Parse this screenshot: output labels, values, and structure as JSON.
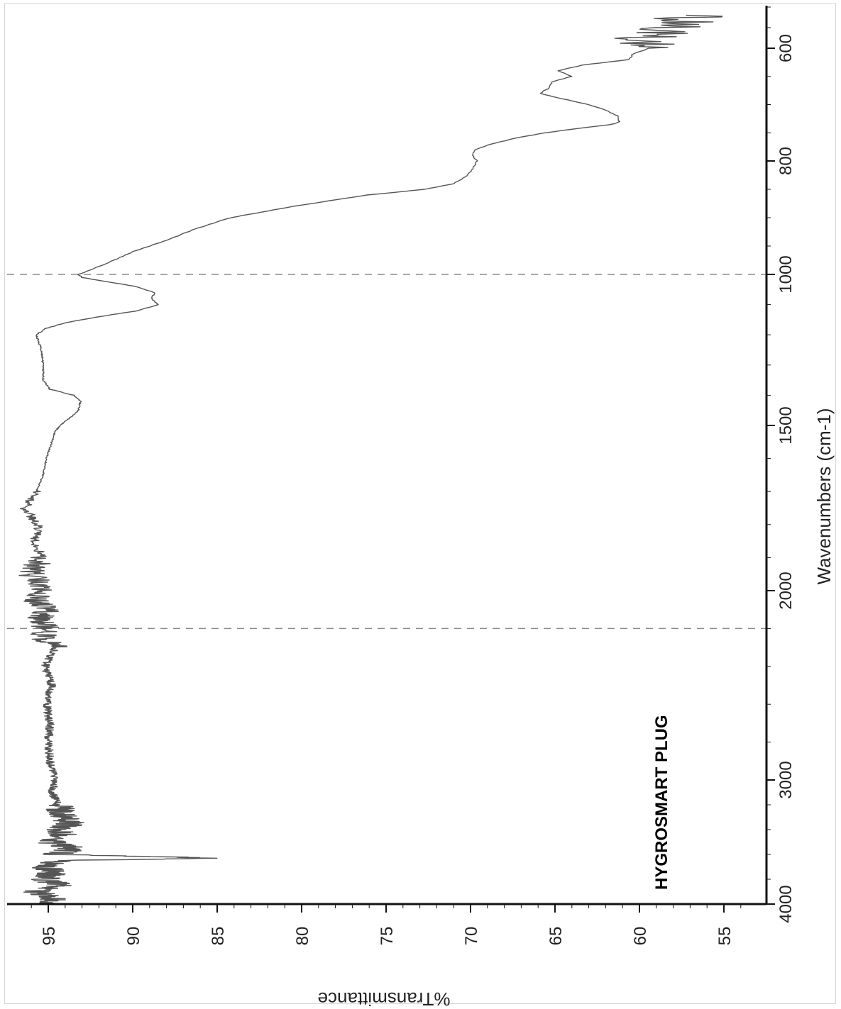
{
  "chart_data": {
    "type": "line",
    "orientation": "rotated-90-clockwise",
    "xlabel": "Wavenumbers (cm-1)",
    "ylabel": "%Transmittance",
    "annotation": "HYGROSMART PLUG",
    "x_ticks": [
      4000,
      3000,
      2000,
      1500,
      1000,
      800,
      600
    ],
    "y_ticks": [
      95,
      90,
      85,
      80,
      75,
      70,
      65,
      60,
      55
    ],
    "xlim": [
      4000,
      500
    ],
    "ylim": [
      53,
      97
    ],
    "x_axis_scale": "piecewise-linear (4000-2000, 2000-1000, 1000-500 cm-1 segments)",
    "reference_lines_x": [
      2200,
      1000
    ],
    "grid": false,
    "line_color": "#555555",
    "series": [
      {
        "x": [
          4000,
          3950,
          3900,
          3850,
          3800,
          3750,
          3700,
          3650,
          3630,
          3600,
          3550,
          3500,
          3450,
          3400,
          3350,
          3300,
          3200,
          3100,
          3000,
          2900,
          2800,
          2700,
          2600,
          2500,
          2400,
          2300,
          2250,
          2200,
          2150,
          2100,
          2050,
          2000,
          1950,
          1900,
          1850,
          1800,
          1750,
          1720,
          1700,
          1650,
          1600,
          1550,
          1520,
          1500,
          1470,
          1450,
          1420,
          1400,
          1380,
          1350,
          1300,
          1250,
          1200,
          1180,
          1160,
          1140,
          1120,
          1100,
          1080,
          1060,
          1040,
          1020,
          1010,
          1000,
          980,
          960,
          940,
          920,
          900,
          880,
          860,
          850,
          840,
          830,
          820,
          800,
          790,
          780,
          770,
          760,
          750,
          740,
          735,
          730,
          720,
          710,
          700,
          690,
          680,
          670,
          660,
          650,
          640,
          630,
          620,
          610,
          600,
          590,
          580,
          570,
          560,
          550,
          540,
          530,
          520
        ],
        "y": [
          95.2,
          94.6,
          95.8,
          94.1,
          95.3,
          94.8,
          95.1,
          94.3,
          85.0,
          94.6,
          93.5,
          94.9,
          94.0,
          94.4,
          93.7,
          94.1,
          94.4,
          94.8,
          94.6,
          94.9,
          95.0,
          94.9,
          95.1,
          94.8,
          95.2,
          94.6,
          95.4,
          95.1,
          95.6,
          95.0,
          95.8,
          95.3,
          96.0,
          95.4,
          95.8,
          95.6,
          96.4,
          96.0,
          95.7,
          95.3,
          95.1,
          94.8,
          94.6,
          94.3,
          93.6,
          93.2,
          93.1,
          93.5,
          94.9,
          95.3,
          95.3,
          95.4,
          95.7,
          95.2,
          94.0,
          92.0,
          89.7,
          88.5,
          88.9,
          88.7,
          89.8,
          92.0,
          93.0,
          93.2,
          91.5,
          90.0,
          88.0,
          86.3,
          84.2,
          80.5,
          76.1,
          72.7,
          71.0,
          70.4,
          70.0,
          69.6,
          69.9,
          69.7,
          68.8,
          67.4,
          65.6,
          63.0,
          61.5,
          61.2,
          61.3,
          62.0,
          63.0,
          64.5,
          65.9,
          65.3,
          65.2,
          64.0,
          64.8,
          63.4,
          60.6,
          60.4,
          59.4,
          59.2,
          59.9,
          59.4,
          58.6,
          58.0,
          57.0,
          57.9,
          56.0
        ],
        "noise_bands": [
          {
            "from": 4000,
            "to": 3200,
            "amplitude": 0.9
          },
          {
            "from": 3200,
            "to": 2300,
            "amplitude": 0.25
          },
          {
            "from": 2300,
            "to": 1900,
            "amplitude": 0.8
          },
          {
            "from": 1900,
            "to": 1700,
            "amplitude": 0.3
          },
          {
            "from": 600,
            "to": 520,
            "amplitude": 1.8
          }
        ]
      }
    ]
  }
}
